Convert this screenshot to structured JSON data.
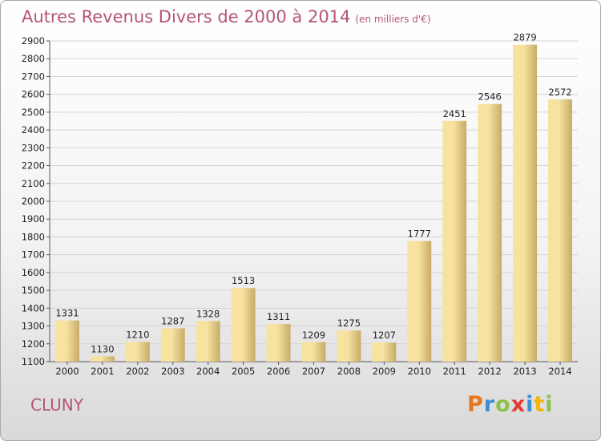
{
  "header": {
    "title": "Autres Revenus Divers de 2000 à 2014",
    "subtitle": "(en milliers d'€)"
  },
  "footer": {
    "city": "CLUNY",
    "logo_letters": [
      {
        "ch": "P",
        "color": "#e8761c"
      },
      {
        "ch": "r",
        "color": "#3d8fd1"
      },
      {
        "ch": "o",
        "color": "#8bc34a"
      },
      {
        "ch": "x",
        "color": "#e53935"
      },
      {
        "ch": "i",
        "color": "#3d8fd1"
      },
      {
        "ch": "t",
        "color": "#f4b400"
      },
      {
        "ch": "i",
        "color": "#8bc34a"
      }
    ]
  },
  "chart_data": {
    "type": "bar",
    "categories": [
      "2000",
      "2001",
      "2002",
      "2003",
      "2004",
      "2005",
      "2006",
      "2007",
      "2008",
      "2009",
      "2010",
      "2011",
      "2012",
      "2013",
      "2014"
    ],
    "values": [
      1331,
      1130,
      1210,
      1287,
      1328,
      1513,
      1311,
      1209,
      1275,
      1207,
      1777,
      2451,
      2546,
      2879,
      2572
    ],
    "title": "Autres Revenus Divers de 2000 à 2014",
    "xlabel": "",
    "ylabel": "",
    "ylim": [
      1100,
      2900
    ],
    "ytick_step": 100,
    "grid": true,
    "bar_color_light": "#f7e2a0",
    "bar_color_dark": "#c8ab68"
  }
}
